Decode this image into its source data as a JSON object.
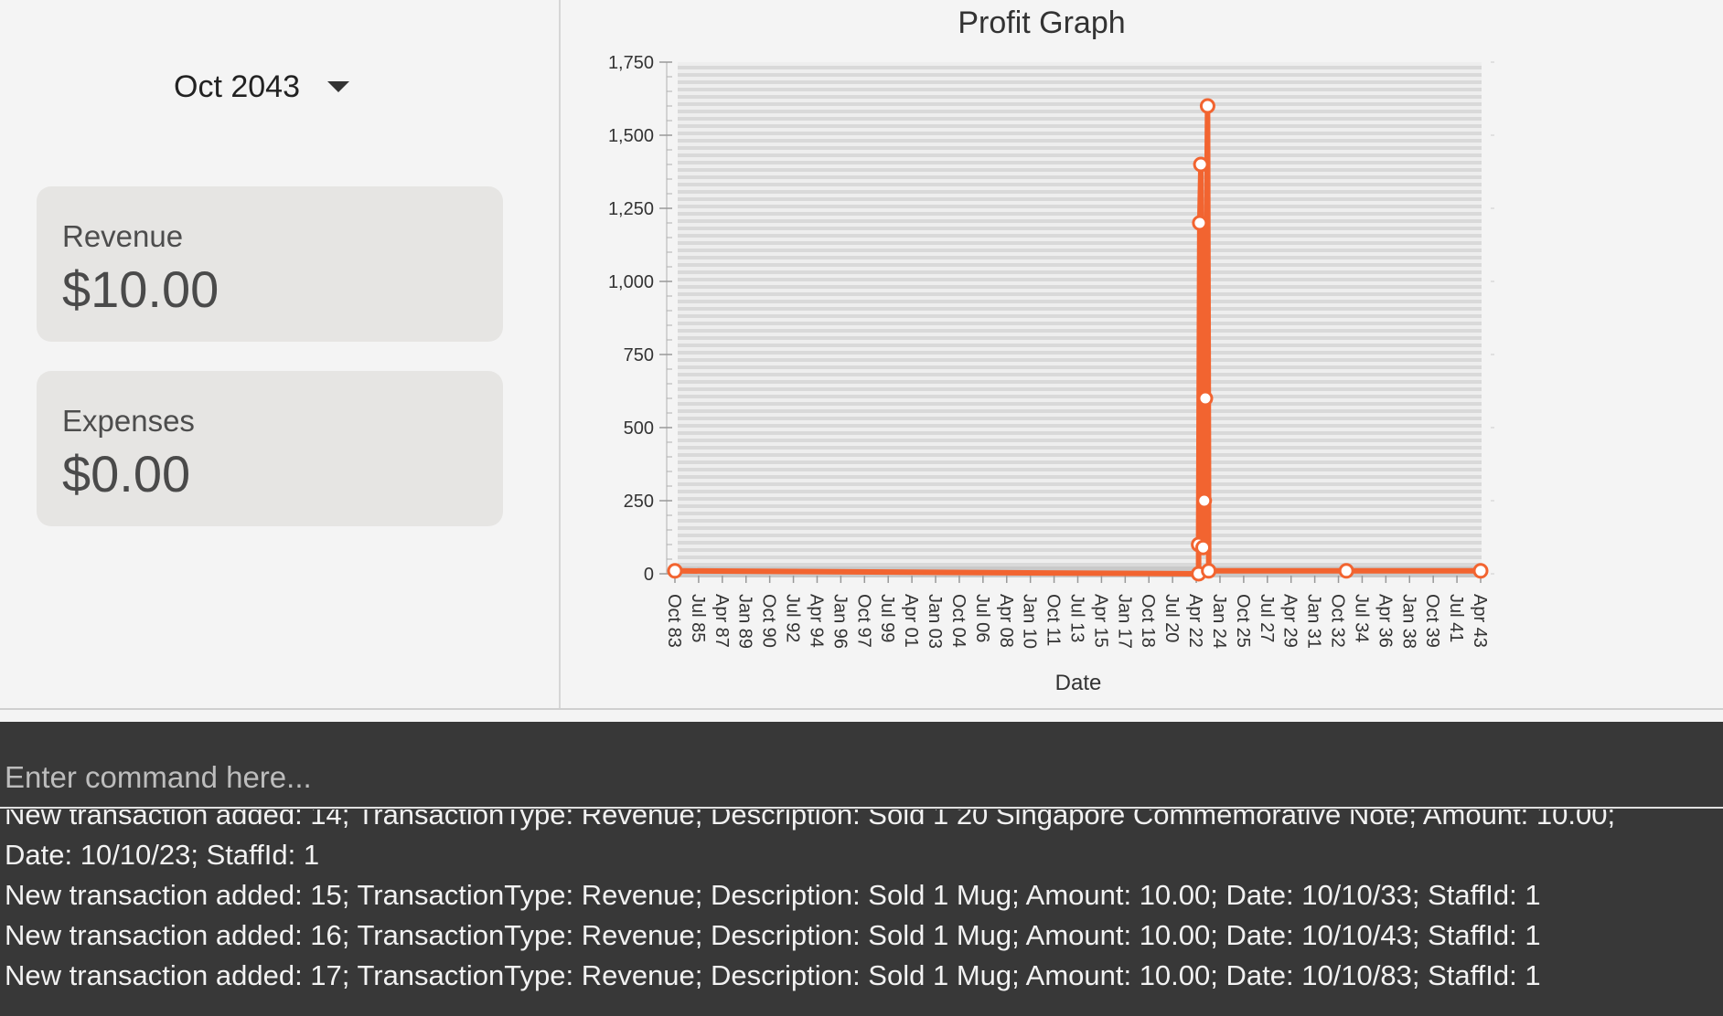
{
  "month_selector": {
    "value": "Oct 2043",
    "icon": "chevron-down-icon"
  },
  "revenue_card": {
    "label": "Revenue",
    "value": "$10.00"
  },
  "expenses_card": {
    "label": "Expenses",
    "value": "$0.00"
  },
  "chart_data": {
    "type": "line",
    "title": "Profit Graph",
    "xlabel": "Date",
    "ylabel": "",
    "ylim": [
      0,
      1750
    ],
    "yticks": [
      0,
      250,
      500,
      750,
      1000,
      1250,
      1500,
      1750
    ],
    "xtick_labels": [
      "Oct 83",
      "Jul 85",
      "Apr 87",
      "Jan 89",
      "Oct 90",
      "Jul 92",
      "Apr 94",
      "Jan 96",
      "Oct 97",
      "Jul 99",
      "Apr 01",
      "Jan 03",
      "Oct 04",
      "Jul 06",
      "Apr 08",
      "Jan 10",
      "Oct 11",
      "Jul 13",
      "Apr 15",
      "Jan 17",
      "Oct 18",
      "Jul 20",
      "Apr 22",
      "Jan 24",
      "Oct 25",
      "Jul 27",
      "Apr 29",
      "Jan 31",
      "Oct 32",
      "Jul 34",
      "Apr 36",
      "Jan 38",
      "Oct 39",
      "Jul 41",
      "Apr 43"
    ],
    "grid": true,
    "color": "#f26430",
    "series": [
      {
        "points": [
          {
            "x": "Oct 1983",
            "y": 10
          },
          {
            "x": "Oct 2022",
            "y": 0
          },
          {
            "x": "Oct 2022",
            "y": 100
          },
          {
            "x": "Nov 2022",
            "y": 1200
          },
          {
            "x": "Dec 2022",
            "y": 1400
          },
          {
            "x": "Feb 2023",
            "y": 90
          },
          {
            "x": "Mar 2023",
            "y": 250
          },
          {
            "x": "Apr 2023",
            "y": 600
          },
          {
            "x": "Jun 2023",
            "y": 1600
          },
          {
            "x": "Jul 2023",
            "y": 10
          },
          {
            "x": "Oct 2033",
            "y": 10
          },
          {
            "x": "Oct 2043",
            "y": 10
          }
        ]
      }
    ]
  },
  "command_box": {
    "placeholder": "Enter command here..."
  },
  "result_log": {
    "lines": [
      "New transaction added: 14; TransactionType: Revenue; Description: Sold 1 20 Singapore Commemorative Note; Amount: 10.00;",
      "Date: 10/10/23; StaffId: 1",
      "New transaction added: 15; TransactionType: Revenue; Description: Sold 1 Mug; Amount: 10.00; Date: 10/10/33; StaffId: 1",
      "New transaction added: 16; TransactionType: Revenue; Description: Sold 1 Mug; Amount: 10.00; Date: 10/10/43; StaffId: 1",
      "New transaction added: 17; TransactionType: Revenue; Description: Sold 1 Mug; Amount: 10.00; Date: 10/10/83; StaffId: 1"
    ]
  }
}
